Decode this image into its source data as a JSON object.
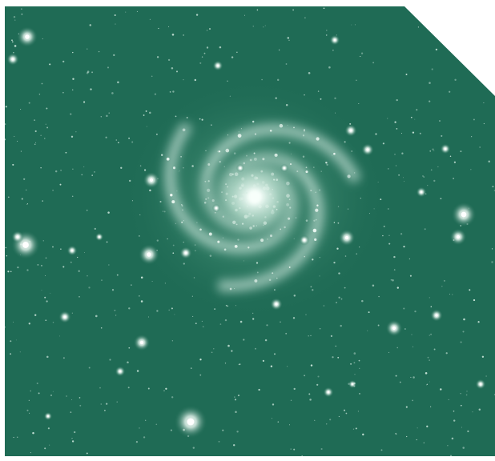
{
  "image": {
    "subject": "spiral-galaxy",
    "colors": {
      "sky": "#1f6b55",
      "sky_dark": "#16533f",
      "glow": "#cfe8dd",
      "core": "#f3fbf7",
      "star": "#e8f6ef",
      "blank": "#ffffff"
    }
  }
}
